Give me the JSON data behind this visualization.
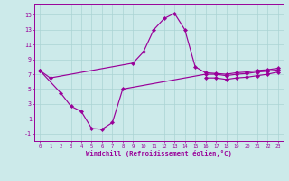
{
  "background_color": "#cceaea",
  "grid_color": "#aad4d4",
  "line_color": "#990099",
  "xlabel": "Windchill (Refroidissement éolien,°C)",
  "hours": [
    0,
    1,
    2,
    3,
    4,
    5,
    6,
    7,
    8,
    9,
    10,
    11,
    12,
    13,
    14,
    15,
    16,
    17,
    18,
    19,
    20,
    21,
    22,
    23
  ],
  "curve1": [
    7.5,
    6.5,
    null,
    null,
    null,
    null,
    null,
    null,
    null,
    8.5,
    10.0,
    13.0,
    14.5,
    15.2,
    13.0,
    8.0,
    7.2,
    7.1,
    7.0,
    7.2,
    7.3,
    7.5,
    7.6,
    7.8
  ],
  "curve2": [
    7.5,
    null,
    4.5,
    2.7,
    2.0,
    -0.3,
    -0.4,
    0.5,
    5.0,
    null,
    null,
    null,
    null,
    null,
    null,
    null,
    7.0,
    7.0,
    6.8,
    7.0,
    7.1,
    7.3,
    7.4,
    7.6
  ],
  "curve3": [
    null,
    null,
    null,
    null,
    null,
    null,
    null,
    null,
    null,
    null,
    null,
    null,
    null,
    null,
    null,
    null,
    6.5,
    6.5,
    6.3,
    6.5,
    6.6,
    6.8,
    7.0,
    7.3
  ],
  "xlim": [
    -0.5,
    23.5
  ],
  "ylim": [
    -2.0,
    16.5
  ],
  "yticks": [
    -1,
    1,
    3,
    5,
    7,
    9,
    11,
    13,
    15
  ],
  "xticks": [
    0,
    1,
    2,
    3,
    4,
    5,
    6,
    7,
    8,
    9,
    10,
    11,
    12,
    13,
    14,
    15,
    16,
    17,
    18,
    19,
    20,
    21,
    22,
    23
  ],
  "marker": "D",
  "markersize": 2.2,
  "linewidth": 0.85
}
